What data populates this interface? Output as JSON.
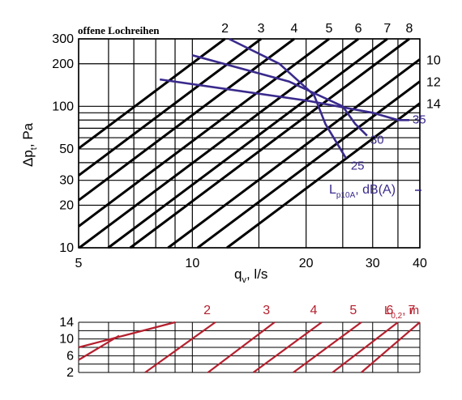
{
  "chart_data": [
    {
      "type": "line",
      "title": "offene Lochreihen",
      "xlabel": "q",
      "xlabel_sub": "v",
      "xlabel_unit": ", l/s",
      "ylabel": "Δp",
      "ylabel_sub": "t",
      "ylabel_unit": ", Pa",
      "xscale": "log",
      "yscale": "log",
      "xlim": [
        5,
        40
      ],
      "ylim": [
        10,
        300
      ],
      "grid": true,
      "x_ticks": [
        "5",
        "10",
        "20",
        "30",
        "40"
      ],
      "x_tick_values": [
        5,
        10,
        20,
        30,
        40
      ],
      "y_ticks": [
        "300",
        "200",
        "100",
        "50",
        "30",
        "20",
        "10"
      ],
      "y_tick_values": [
        300,
        200,
        100,
        50,
        30,
        20,
        10
      ],
      "throw_lines": {
        "description_label": "",
        "labels": [
          "2",
          "3",
          "4",
          "5",
          "6",
          "7",
          "8",
          "10",
          "12",
          "14"
        ],
        "label_values": [
          2,
          3,
          4,
          5,
          6,
          7,
          8,
          10,
          12,
          14
        ],
        "slope_log": 2,
        "anchor_dp": 300,
        "anchor_q": [
          12.2,
          15.2,
          18.6,
          23.0,
          27.5,
          32.8,
          37.5,
          40.0,
          40.0,
          40.0
        ],
        "right_edge_dp": [
          null,
          null,
          null,
          null,
          null,
          null,
          null,
          215,
          150,
          105
        ]
      },
      "series": [
        {
          "name": "25",
          "values": [
            [
              12.5,
              300
            ],
            [
              17,
              200
            ],
            [
              21,
              120
            ],
            [
              22.5,
              75
            ],
            [
              25.5,
              43
            ]
          ]
        },
        {
          "name": "30",
          "values": [
            [
              10,
              230
            ],
            [
              18,
              150
            ],
            [
              25,
              100
            ],
            [
              27,
              75
            ],
            [
              29,
              62
            ]
          ]
        },
        {
          "name": "35",
          "values": [
            [
              8.2,
              155
            ],
            [
              20,
              110
            ],
            [
              30,
              90
            ],
            [
              35,
              80
            ],
            [
              37.5,
              80
            ]
          ]
        }
      ],
      "level_label": "L",
      "level_label_sub": "p10A",
      "level_label_unit": ", dB(A)",
      "colors": {
        "lines": "#000000",
        "series": "#3a2a8c"
      }
    },
    {
      "type": "line",
      "xscale": "log",
      "yscale": "linear",
      "xlim": [
        5,
        40
      ],
      "y_ticks": [
        "14",
        "10",
        "6",
        "2"
      ],
      "y_tick_values": [
        14,
        10,
        6,
        2
      ],
      "grid": true,
      "series_label": "L",
      "series_label_sub": "0,2",
      "series_label_unit": ", m",
      "line_labels": [
        "2",
        "3",
        "4",
        "5",
        "6",
        "7"
      ],
      "line_values": [
        2,
        3,
        4,
        5,
        6,
        7
      ],
      "lines_at_y2": [
        7.5,
        11,
        14.5,
        18.5,
        23.5,
        28
      ],
      "lines_at_y14": [
        11.5,
        16.5,
        22,
        28,
        35,
        40
      ],
      "colors": {
        "lines": "#b5202e"
      }
    }
  ]
}
